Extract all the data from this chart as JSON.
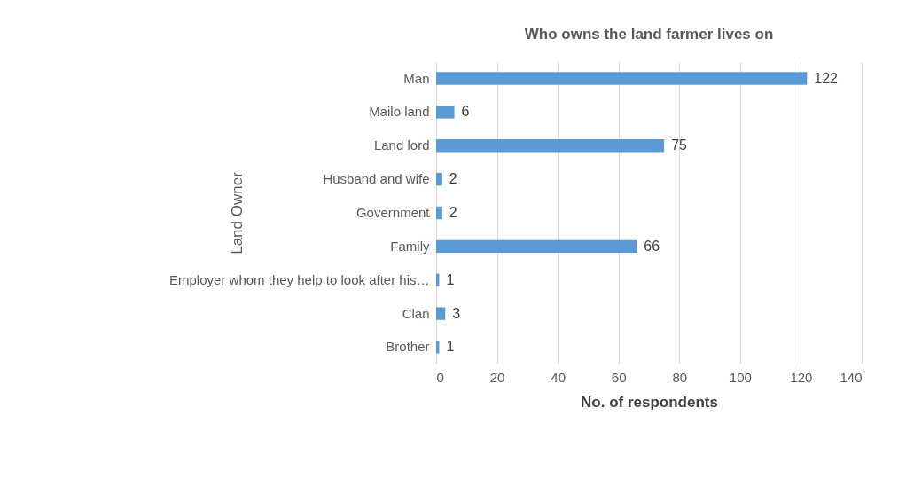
{
  "chart_data": {
    "type": "bar",
    "orientation": "horizontal",
    "title": "Who owns the land farmer lives on",
    "xlabel": "No. of respondents",
    "ylabel": "Land Owner",
    "categories": [
      "Man",
      "Mailo land",
      "Land lord",
      "Husband and wife",
      "Government",
      "Family",
      "Employer whom they help to look after his…",
      "Clan",
      "Brother"
    ],
    "values": [
      122,
      6,
      75,
      2,
      2,
      66,
      1,
      3,
      1
    ],
    "color": "#5b9bd5",
    "xlim": [
      0,
      140
    ],
    "xticks": [
      0,
      20,
      40,
      60,
      80,
      100,
      120,
      140
    ],
    "grid": "x",
    "data_labels": true
  }
}
